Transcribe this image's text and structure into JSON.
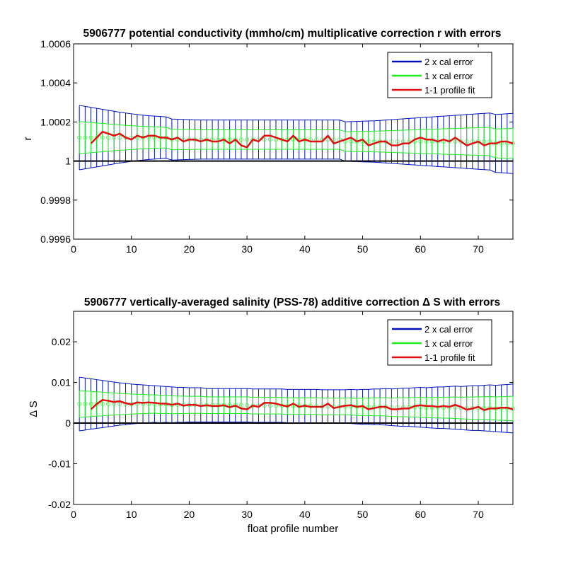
{
  "figure": {
    "colors": {
      "cal2": "#0011bb",
      "cal1": "#22ee22",
      "fit": "#e01010",
      "zero": "#000000",
      "cal1_marker": "#55ee55"
    }
  },
  "chart_data": [
    {
      "type": "line",
      "title": "5906777 potential conductivity (mmho/cm) multiplicative correction r with errors",
      "xlabel": "",
      "ylabel": "r",
      "xlim": [
        0,
        76
      ],
      "ylim": [
        0.9996,
        1.0006
      ],
      "xticks": [
        0,
        10,
        20,
        30,
        40,
        50,
        60,
        70
      ],
      "yticks": [
        0.9996,
        0.9998,
        1,
        1.0002,
        1.0004,
        1.0006
      ],
      "ytick_labels": [
        "0.9996",
        "0.9998",
        "1",
        "1.0002",
        "1.0004",
        "1.0006"
      ],
      "legend": {
        "position": "top-right",
        "entries": [
          "2 x cal error",
          "1 x cal error",
          "1-1 profile fit"
        ]
      },
      "zero_line": 1,
      "series": [
        {
          "name": "2 x cal error",
          "kind": "errorbar",
          "x_start": 1,
          "x_end": 76,
          "center": [
            1.00012,
            1.00012,
            1.00012,
            1.00012,
            1.00012,
            1.00012,
            1.00012,
            1.00012,
            1.00012,
            1.00012,
            1.00012,
            1.00012,
            1.00012,
            1.00012,
            1.00012,
            1.00012,
            1.00011,
            1.00011,
            1.00011,
            1.00011,
            1.00011,
            1.00011,
            1.00011,
            1.00011,
            1.00011,
            1.00011,
            1.00011,
            1.00011,
            1.00011,
            1.00011,
            1.00011,
            1.00011,
            1.00011,
            1.00011,
            1.00011,
            1.00011,
            1.00011,
            1.00011,
            1.00011,
            1.00011,
            1.00011,
            1.00011,
            1.00011,
            1.00011,
            1.00011,
            1.00011,
            1.0001,
            1.0001,
            1.0001,
            1.0001,
            1.0001,
            1.0001,
            1.0001,
            1.0001,
            1.0001,
            1.0001,
            1.0001,
            1.0001,
            1.0001,
            1.0001,
            1.0001,
            1.0001,
            1.0001,
            1.0001,
            1.0001,
            1.0001,
            1.0001,
            1.0001,
            1.0001,
            1.0001,
            1.0001,
            1.0001,
            1.00009,
            1.00009,
            1.00009,
            1.00009
          ],
          "halfwidth": [
            0.000165,
            0.00016,
            0.000155,
            0.00015,
            0.000145,
            0.00014,
            0.000135,
            0.00013,
            0.000126,
            0.000122,
            0.000118,
            0.000115,
            0.000112,
            0.00011,
            0.000108,
            0.000106,
            0.000105,
            0.000104,
            0.000103,
            0.000102,
            0.000101,
            0.0001,
            0.0001,
            0.0001,
            0.0001,
            0.0001,
            0.0001,
            0.0001,
            0.0001,
            0.0001,
            0.0001,
            0.0001,
            0.0001,
            0.0001,
            0.0001,
            0.0001,
            0.0001,
            0.0001,
            0.0001,
            0.0001,
            0.0001,
            0.0001,
            0.0001,
            0.0001,
            0.0001,
            0.0001,
            0.000101,
            0.000102,
            0.000103,
            0.000104,
            0.000105,
            0.000106,
            0.000108,
            0.00011,
            0.000112,
            0.000114,
            0.000116,
            0.000118,
            0.00012,
            0.000122,
            0.000124,
            0.000126,
            0.000128,
            0.00013,
            0.000132,
            0.000134,
            0.000136,
            0.000138,
            0.00014,
            0.000142,
            0.000144,
            0.000146,
            0.000148,
            0.00015,
            0.000152,
            0.000154
          ]
        },
        {
          "name": "1 x cal error",
          "kind": "errorbar",
          "x_start": 1,
          "x_end": 76,
          "center": [
            1.00012,
            1.00012,
            1.00012,
            1.00012,
            1.00012,
            1.00012,
            1.00012,
            1.00012,
            1.00012,
            1.00012,
            1.00012,
            1.00012,
            1.00012,
            1.00012,
            1.00012,
            1.00012,
            1.00011,
            1.00011,
            1.00011,
            1.00011,
            1.00011,
            1.00011,
            1.00011,
            1.00011,
            1.00011,
            1.00011,
            1.00011,
            1.00011,
            1.00011,
            1.00011,
            1.00011,
            1.00011,
            1.00011,
            1.00011,
            1.00011,
            1.00011,
            1.00011,
            1.00011,
            1.00011,
            1.00011,
            1.00011,
            1.00011,
            1.00011,
            1.00011,
            1.00011,
            1.00011,
            1.0001,
            1.0001,
            1.0001,
            1.0001,
            1.0001,
            1.0001,
            1.0001,
            1.0001,
            1.0001,
            1.0001,
            1.0001,
            1.0001,
            1.0001,
            1.0001,
            1.0001,
            1.0001,
            1.0001,
            1.0001,
            1.0001,
            1.0001,
            1.0001,
            1.0001,
            1.0001,
            1.0001,
            1.0001,
            1.0001,
            1.00009,
            1.00009,
            1.00009,
            1.00009
          ],
          "halfwidth": [
            8.25e-05,
            8e-05,
            7.75e-05,
            7.5e-05,
            7.25e-05,
            7e-05,
            6.75e-05,
            6.5e-05,
            6.3e-05,
            6.1e-05,
            5.9e-05,
            5.75e-05,
            5.6e-05,
            5.5e-05,
            5.4e-05,
            5.3e-05,
            5.25e-05,
            5.2e-05,
            5.15e-05,
            5.1e-05,
            5.05e-05,
            5e-05,
            5e-05,
            5e-05,
            5e-05,
            5e-05,
            5e-05,
            5e-05,
            5e-05,
            5e-05,
            5e-05,
            5e-05,
            5e-05,
            5e-05,
            5e-05,
            5e-05,
            5e-05,
            5e-05,
            5e-05,
            5e-05,
            5e-05,
            5e-05,
            5e-05,
            5e-05,
            5e-05,
            5e-05,
            5.05e-05,
            5.1e-05,
            5.15e-05,
            5.2e-05,
            5.25e-05,
            5.3e-05,
            5.4e-05,
            5.5e-05,
            5.6e-05,
            5.7e-05,
            5.8e-05,
            5.9e-05,
            6e-05,
            6.1e-05,
            6.2e-05,
            6.3e-05,
            6.4e-05,
            6.5e-05,
            6.6e-05,
            6.7e-05,
            6.8e-05,
            6.9e-05,
            7e-05,
            7.1e-05,
            7.2e-05,
            7.3e-05,
            7.4e-05,
            7.5e-05,
            7.6e-05,
            7.7e-05
          ]
        },
        {
          "name": "1-1 profile fit",
          "kind": "line",
          "x_start": 3,
          "x_end": 76,
          "values": [
            1.00009,
            1.00012,
            1.00015,
            1.00014,
            1.00013,
            1.00014,
            1.00012,
            1.00011,
            1.00013,
            1.00012,
            1.00013,
            1.00013,
            1.00012,
            1.00012,
            1.00011,
            1.00012,
            1.0001,
            1.00011,
            1.00011,
            1.0001,
            1.00011,
            1.0001,
            1.0001,
            1.00011,
            1.00009,
            1.00011,
            1.00008,
            1.00007,
            1.00011,
            1.0001,
            1.00013,
            1.00013,
            1.00012,
            1.00011,
            1.0001,
            1.00013,
            1.0001,
            1.00011,
            1.0001,
            1.0001,
            1.0001,
            1.00013,
            1.00009,
            1.0001,
            1.00011,
            1.00012,
            1.0001,
            1.00011,
            1.00008,
            1.00009,
            1.0001,
            1.0001,
            1.00008,
            1.00008,
            1.00009,
            1.00009,
            1.00011,
            1.00012,
            1.00011,
            1.00011,
            1.0001,
            1.00011,
            1.0001,
            1.00012,
            1.0001,
            1.00008,
            1.00009,
            1.0001,
            1.00008,
            1.00009,
            1.00009,
            1.0001,
            1.0001,
            1.00009
          ]
        }
      ]
    },
    {
      "type": "line",
      "title": "5906777 vertically-averaged salinity (PSS-78) additive correction Δ S with errors",
      "xlabel": "float profile number",
      "ylabel": "Δ S",
      "xlim": [
        0,
        76
      ],
      "ylim": [
        -0.02,
        0.0275
      ],
      "xticks": [
        0,
        10,
        20,
        30,
        40,
        50,
        60,
        70
      ],
      "yticks": [
        -0.02,
        -0.01,
        0,
        0.01,
        0.02
      ],
      "ytick_labels": [
        "-0.02",
        "-0.01",
        "0",
        "0.01",
        "0.02"
      ],
      "legend": {
        "position": "top-right",
        "entries": [
          "2 x cal error",
          "1 x cal error",
          "1-1 profile fit"
        ]
      },
      "zero_line": 0,
      "series": [
        {
          "name": "2 x cal error",
          "kind": "errorbar",
          "x_start": 1,
          "x_end": 76,
          "center": [
            0.0047,
            0.0047,
            0.0047,
            0.0047,
            0.0047,
            0.0047,
            0.0047,
            0.0047,
            0.0047,
            0.0047,
            0.0047,
            0.0047,
            0.0047,
            0.0047,
            0.0046,
            0.0046,
            0.0045,
            0.0045,
            0.0045,
            0.0045,
            0.0045,
            0.0045,
            0.0044,
            0.0044,
            0.0044,
            0.0044,
            0.0044,
            0.0044,
            0.0044,
            0.0044,
            0.0043,
            0.0043,
            0.0043,
            0.0043,
            0.0043,
            0.0043,
            0.0042,
            0.0042,
            0.0042,
            0.0042,
            0.0042,
            0.0042,
            0.0041,
            0.0041,
            0.0041,
            0.0041,
            0.0041,
            0.0041,
            0.004,
            0.004,
            0.004,
            0.004,
            0.004,
            0.004,
            0.0039,
            0.0039,
            0.0039,
            0.0039,
            0.0039,
            0.0039,
            0.0038,
            0.0038,
            0.0038,
            0.0038,
            0.0038,
            0.0038,
            0.0037,
            0.0037,
            0.0037,
            0.0037,
            0.0037,
            0.0037,
            0.0036,
            0.0036,
            0.0036,
            0.0036
          ],
          "halfwidth": [
            0.0066,
            0.0064,
            0.0062,
            0.006,
            0.0058,
            0.0056,
            0.0054,
            0.0052,
            0.0051,
            0.0049,
            0.0048,
            0.0047,
            0.0046,
            0.0045,
            0.0045,
            0.0044,
            0.0044,
            0.0043,
            0.0043,
            0.0042,
            0.0042,
            0.0042,
            0.0041,
            0.0041,
            0.0041,
            0.0041,
            0.0041,
            0.0041,
            0.0041,
            0.0041,
            0.0041,
            0.0041,
            0.0041,
            0.0041,
            0.0041,
            0.0041,
            0.0041,
            0.0041,
            0.0041,
            0.0041,
            0.0041,
            0.0041,
            0.0041,
            0.0041,
            0.0041,
            0.0041,
            0.0041,
            0.0042,
            0.0042,
            0.0043,
            0.0043,
            0.0044,
            0.0044,
            0.0045,
            0.0045,
            0.0046,
            0.0047,
            0.0047,
            0.0048,
            0.0049,
            0.0049,
            0.005,
            0.0051,
            0.0051,
            0.0052,
            0.0053,
            0.0053,
            0.0054,
            0.0055,
            0.0055,
            0.0056,
            0.0057,
            0.0057,
            0.0058,
            0.0059,
            0.006
          ]
        },
        {
          "name": "1 x cal error",
          "kind": "errorbar",
          "x_start": 1,
          "x_end": 76,
          "center": [
            0.0047,
            0.0047,
            0.0047,
            0.0047,
            0.0047,
            0.0047,
            0.0047,
            0.0047,
            0.0047,
            0.0047,
            0.0047,
            0.0047,
            0.0047,
            0.0047,
            0.0046,
            0.0046,
            0.0045,
            0.0045,
            0.0045,
            0.0045,
            0.0045,
            0.0045,
            0.0044,
            0.0044,
            0.0044,
            0.0044,
            0.0044,
            0.0044,
            0.0044,
            0.0044,
            0.0043,
            0.0043,
            0.0043,
            0.0043,
            0.0043,
            0.0043,
            0.0042,
            0.0042,
            0.0042,
            0.0042,
            0.0042,
            0.0042,
            0.0041,
            0.0041,
            0.0041,
            0.0041,
            0.0041,
            0.0041,
            0.004,
            0.004,
            0.004,
            0.004,
            0.004,
            0.004,
            0.0039,
            0.0039,
            0.0039,
            0.0039,
            0.0039,
            0.0039,
            0.0038,
            0.0038,
            0.0038,
            0.0038,
            0.0038,
            0.0038,
            0.0037,
            0.0037,
            0.0037,
            0.0037,
            0.0037,
            0.0037,
            0.0036,
            0.0036,
            0.0036,
            0.0036
          ],
          "halfwidth": [
            0.0033,
            0.0032,
            0.0031,
            0.003,
            0.0029,
            0.0028,
            0.0027,
            0.0026,
            0.00255,
            0.00245,
            0.0024,
            0.00235,
            0.0023,
            0.00225,
            0.00225,
            0.0022,
            0.0022,
            0.00215,
            0.00215,
            0.0021,
            0.0021,
            0.0021,
            0.00205,
            0.00205,
            0.00205,
            0.00205,
            0.00205,
            0.00205,
            0.00205,
            0.00205,
            0.00205,
            0.00205,
            0.00205,
            0.00205,
            0.00205,
            0.00205,
            0.00205,
            0.00205,
            0.00205,
            0.00205,
            0.00205,
            0.00205,
            0.00205,
            0.00205,
            0.00205,
            0.00205,
            0.00205,
            0.0021,
            0.0021,
            0.00215,
            0.00215,
            0.0022,
            0.0022,
            0.00225,
            0.00225,
            0.0023,
            0.00235,
            0.00235,
            0.0024,
            0.00245,
            0.00245,
            0.0025,
            0.00255,
            0.00255,
            0.0026,
            0.00265,
            0.00265,
            0.0027,
            0.00275,
            0.00275,
            0.0028,
            0.00285,
            0.00285,
            0.0029,
            0.00295,
            0.003
          ]
        },
        {
          "name": "1-1 profile fit",
          "kind": "line",
          "x_start": 3,
          "x_end": 76,
          "values": [
            0.0034,
            0.0047,
            0.0057,
            0.0055,
            0.0052,
            0.0054,
            0.0049,
            0.0046,
            0.0051,
            0.005,
            0.0051,
            0.005,
            0.0048,
            0.0048,
            0.0045,
            0.0048,
            0.0043,
            0.0045,
            0.0045,
            0.0042,
            0.0044,
            0.0042,
            0.0042,
            0.0044,
            0.0039,
            0.0043,
            0.0036,
            0.0034,
            0.0043,
            0.004,
            0.005,
            0.005,
            0.0048,
            0.0044,
            0.0041,
            0.0048,
            0.004,
            0.0043,
            0.004,
            0.004,
            0.004,
            0.0048,
            0.0037,
            0.004,
            0.0043,
            0.0044,
            0.004,
            0.0042,
            0.0034,
            0.0037,
            0.004,
            0.004,
            0.0034,
            0.0034,
            0.0036,
            0.0036,
            0.0042,
            0.0044,
            0.0042,
            0.0042,
            0.004,
            0.0042,
            0.004,
            0.0045,
            0.004,
            0.0033,
            0.0036,
            0.004,
            0.0032,
            0.0036,
            0.0036,
            0.0038,
            0.0038,
            0.0034
          ]
        }
      ]
    }
  ]
}
